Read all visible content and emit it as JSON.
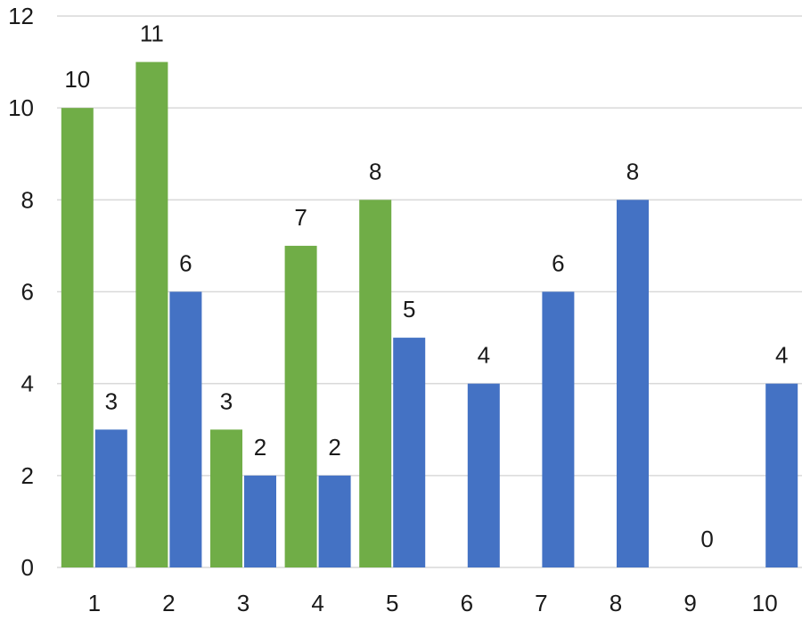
{
  "chart_data": {
    "type": "bar",
    "title": "",
    "xlabel": "",
    "ylabel": "",
    "categories": [
      "1",
      "2",
      "3",
      "4",
      "5",
      "6",
      "7",
      "8",
      "9",
      "10"
    ],
    "ylim": [
      0,
      12
    ],
    "yticks": [
      0,
      2,
      4,
      6,
      8,
      10,
      12
    ],
    "grid": true,
    "legend": "none",
    "series": [
      {
        "color": "#70ad47",
        "values": [
          10,
          11,
          3,
          7,
          8,
          null,
          null,
          null,
          null,
          null
        ]
      },
      {
        "color": "#4472c4",
        "values": [
          3,
          6,
          2,
          2,
          5,
          4,
          6,
          8,
          0,
          4
        ]
      }
    ]
  }
}
